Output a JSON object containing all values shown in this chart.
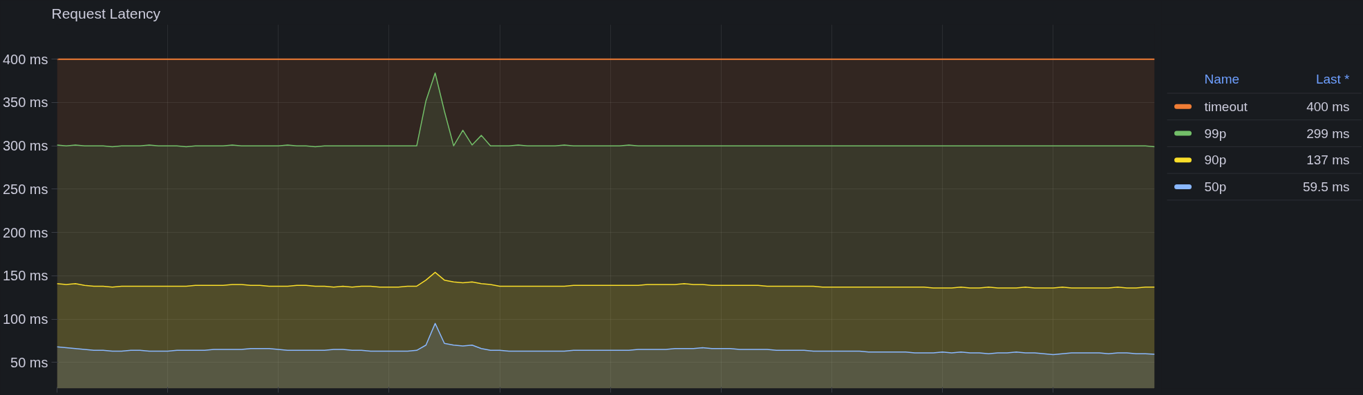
{
  "chart_data": {
    "type": "area",
    "title": "Request Latency",
    "categories": [
      null,
      null,
      null,
      null,
      null,
      null,
      null,
      null,
      null,
      null,
      null,
      null,
      null,
      null,
      null,
      null,
      null,
      null,
      null,
      null,
      null,
      null,
      null,
      null,
      null,
      null,
      null,
      null,
      null,
      null,
      null,
      null,
      null,
      null,
      null,
      null,
      null,
      null,
      null,
      null,
      null,
      null,
      null,
      null,
      null,
      null,
      null,
      null,
      null,
      null,
      null,
      null,
      null,
      null,
      null,
      null,
      null,
      null,
      null,
      null,
      null,
      null,
      null,
      null,
      null,
      null,
      null,
      null,
      null,
      null,
      null,
      null,
      null,
      null,
      null,
      null,
      null,
      null,
      null,
      null,
      null,
      null,
      null,
      null,
      null,
      null,
      null,
      null,
      null,
      null,
      null,
      null,
      null,
      null,
      null,
      null,
      null,
      null,
      null,
      null,
      null,
      null,
      null,
      null,
      null,
      null,
      null,
      null,
      null,
      null,
      null,
      null,
      null,
      null,
      null,
      null,
      null,
      null,
      null,
      null
    ],
    "series": [
      {
        "name": "timeout",
        "color": "#f07d35",
        "values": [
          400,
          400,
          400,
          400,
          400,
          400,
          400,
          400,
          400,
          400,
          400,
          400,
          400,
          400,
          400,
          400,
          400,
          400,
          400,
          400,
          400,
          400,
          400,
          400,
          400,
          400,
          400,
          400,
          400,
          400,
          400,
          400,
          400,
          400,
          400,
          400,
          400,
          400,
          400,
          400,
          400,
          400,
          400,
          400,
          400,
          400,
          400,
          400,
          400,
          400,
          400,
          400,
          400,
          400,
          400,
          400,
          400,
          400,
          400,
          400,
          400,
          400,
          400,
          400,
          400,
          400,
          400,
          400,
          400,
          400,
          400,
          400,
          400,
          400,
          400,
          400,
          400,
          400,
          400,
          400,
          400,
          400,
          400,
          400,
          400,
          400,
          400,
          400,
          400,
          400,
          400,
          400,
          400,
          400,
          400,
          400,
          400,
          400,
          400,
          400,
          400,
          400,
          400,
          400,
          400,
          400,
          400,
          400,
          400,
          400,
          400,
          400,
          400,
          400,
          400,
          400,
          400,
          400,
          400,
          400
        ]
      },
      {
        "name": "99p",
        "color": "#73bf69",
        "values": [
          301,
          300,
          301,
          300,
          300,
          300,
          299,
          300,
          300,
          300,
          301,
          300,
          300,
          300,
          299,
          300,
          300,
          300,
          300,
          301,
          300,
          300,
          300,
          300,
          300,
          301,
          300,
          300,
          299,
          300,
          300,
          300,
          300,
          300,
          300,
          300,
          300,
          300,
          300,
          300,
          352,
          384,
          340,
          300,
          318,
          301,
          312,
          300,
          300,
          300,
          301,
          300,
          300,
          300,
          300,
          301,
          300,
          300,
          300,
          300,
          300,
          300,
          301,
          300,
          300,
          300,
          300,
          300,
          300,
          300,
          300,
          300,
          300,
          300,
          300,
          300,
          300,
          300,
          300,
          300,
          300,
          300,
          300,
          300,
          300,
          300,
          300,
          300,
          300,
          300,
          300,
          300,
          300,
          300,
          300,
          300,
          300,
          300,
          300,
          300,
          300,
          300,
          300,
          300,
          300,
          300,
          300,
          300,
          300,
          300,
          300,
          300,
          300,
          300,
          300,
          300,
          300,
          300,
          300,
          299
        ]
      },
      {
        "name": "90p",
        "color": "#fade2a",
        "values": [
          141,
          140,
          141,
          139,
          138,
          138,
          137,
          138,
          138,
          138,
          138,
          138,
          138,
          138,
          138,
          139,
          139,
          139,
          139,
          140,
          140,
          139,
          139,
          138,
          138,
          138,
          139,
          139,
          138,
          138,
          137,
          138,
          137,
          138,
          138,
          137,
          137,
          137,
          138,
          138,
          145,
          154,
          145,
          143,
          142,
          143,
          141,
          140,
          138,
          138,
          138,
          138,
          138,
          138,
          138,
          138,
          139,
          139,
          139,
          139,
          139,
          139,
          139,
          139,
          140,
          140,
          140,
          140,
          141,
          140,
          140,
          139,
          139,
          139,
          139,
          139,
          139,
          138,
          138,
          138,
          138,
          138,
          138,
          137,
          137,
          137,
          137,
          137,
          137,
          137,
          137,
          137,
          137,
          137,
          137,
          136,
          136,
          136,
          137,
          136,
          136,
          137,
          136,
          136,
          136,
          137,
          136,
          136,
          136,
          137,
          136,
          136,
          136,
          136,
          136,
          137,
          136,
          136,
          137,
          137
        ]
      },
      {
        "name": "50p",
        "color": "#8ab8ff",
        "values": [
          68,
          67,
          66,
          65,
          64,
          64,
          63,
          63,
          64,
          64,
          63,
          63,
          63,
          64,
          64,
          64,
          64,
          65,
          65,
          65,
          65,
          66,
          66,
          66,
          65,
          64,
          64,
          64,
          64,
          64,
          65,
          65,
          64,
          64,
          63,
          63,
          63,
          63,
          63,
          64,
          70,
          95,
          72,
          70,
          69,
          70,
          66,
          64,
          64,
          63,
          63,
          63,
          63,
          63,
          63,
          63,
          64,
          64,
          64,
          64,
          64,
          64,
          64,
          65,
          65,
          65,
          65,
          66,
          66,
          66,
          67,
          66,
          66,
          66,
          65,
          65,
          65,
          65,
          64,
          64,
          64,
          64,
          63,
          63,
          63,
          63,
          63,
          63,
          62,
          62,
          62,
          62,
          62,
          61,
          61,
          61,
          62,
          61,
          62,
          61,
          61,
          60,
          61,
          61,
          62,
          61,
          61,
          60,
          59,
          60,
          61,
          61,
          61,
          61,
          60,
          61,
          61,
          60,
          60,
          59.5
        ]
      }
    ],
    "ylim": [
      20,
      440
    ],
    "yticks": [
      {
        "value": 50,
        "label": "50 ms"
      },
      {
        "value": 100,
        "label": "100 ms"
      },
      {
        "value": 150,
        "label": "150 ms"
      },
      {
        "value": 200,
        "label": "200 ms"
      },
      {
        "value": 250,
        "label": "250 ms"
      },
      {
        "value": 300,
        "label": "300 ms"
      },
      {
        "value": 350,
        "label": "350 ms"
      },
      {
        "value": 400,
        "label": "400 ms"
      }
    ],
    "grid": true,
    "legend": "right",
    "marker": "none",
    "line_style": "solid",
    "tick_labels": "y",
    "annotations": [
      "Name",
      "Last *",
      "400 ms",
      "299 ms",
      "137 ms",
      "59.5 ms"
    ]
  }
}
